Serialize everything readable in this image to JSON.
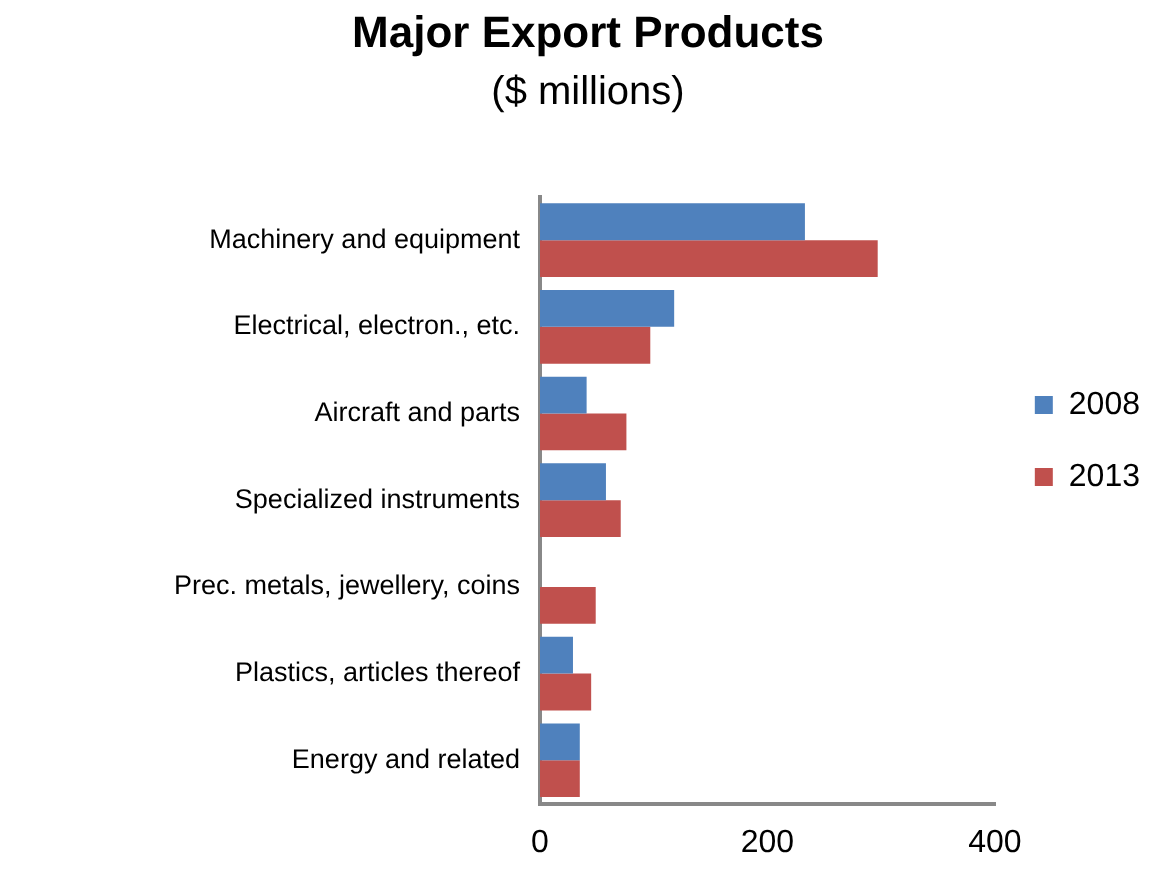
{
  "chart_data": {
    "type": "bar",
    "orientation": "horizontal",
    "title": "Major Export Products",
    "subtitle": "($ millions)",
    "categories": [
      "Machinery and equipment",
      "Electrical, electron., etc.",
      "Aircraft and parts",
      "Specialized instruments",
      "Prec. metals, jewellery, coins",
      "Plastics, articles thereof",
      "Energy and related"
    ],
    "series": [
      {
        "name": "2008",
        "color": "#4f81bd",
        "values": [
          233,
          118,
          41,
          58,
          null,
          29,
          35
        ]
      },
      {
        "name": "2013",
        "color": "#c0504d",
        "values": [
          297,
          97,
          76,
          71,
          49,
          45,
          35
        ]
      }
    ],
    "xlim": [
      0,
      400
    ],
    "xticks": [
      0,
      200,
      400
    ],
    "grid": false,
    "legend": "right"
  }
}
